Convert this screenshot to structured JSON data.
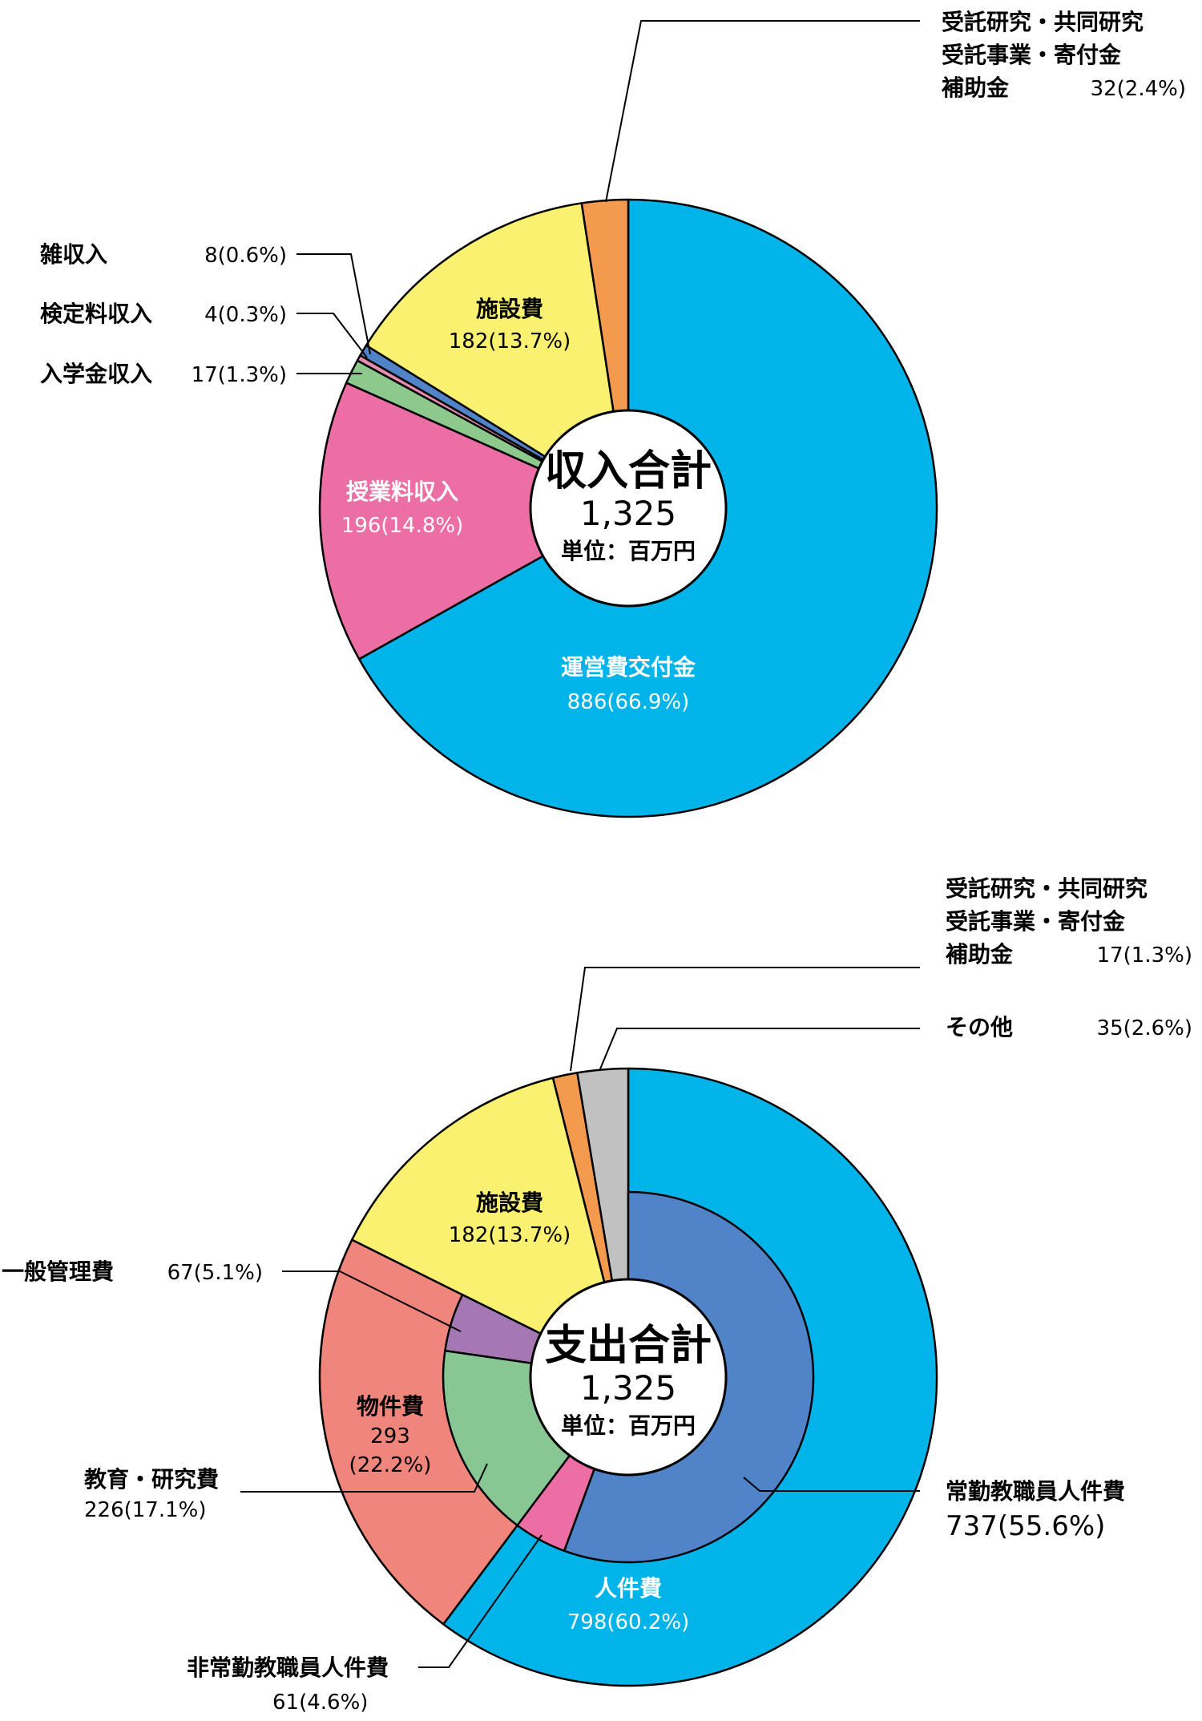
{
  "chart_data": [
    {
      "type": "pie",
      "title": "",
      "center": {
        "title": "収入合計",
        "total": "1,325",
        "unit": "単位：百万円"
      },
      "slices": [
        {
          "name": "運営費交付金",
          "value": 886,
          "label": "886(66.9%)",
          "color": "#00b4ea"
        },
        {
          "name": "授業料収入",
          "value": 196,
          "label": "196(14.8%)",
          "color": "#eb6ea5"
        },
        {
          "name": "入学金収入",
          "value": 17,
          "label": "17(1.3%)",
          "color": "#8dc98d"
        },
        {
          "name": "検定料収入",
          "value": 4,
          "label": "4(0.3%)",
          "color": "#e58cb0"
        },
        {
          "name": "雑収入",
          "value": 8,
          "label": "8(0.6%)",
          "color": "#5083c7"
        },
        {
          "name": "施設費",
          "value": 182,
          "label": "182(13.7%)",
          "color": "#fbf170"
        },
        {
          "name_lines": [
            "受託研究・共同研究",
            "受託事業・寄付金",
            "補助金"
          ],
          "value": 32,
          "label": "32(2.4%)",
          "color": "#f39a4e"
        }
      ]
    },
    {
      "type": "pie",
      "title": "",
      "center": {
        "title": "支出合計",
        "total": "1,325",
        "unit": "単位：百万円"
      },
      "outer_slices": [
        {
          "name": "人件費",
          "value": 798,
          "label": "798(60.2%)",
          "color": "#00b4ea"
        },
        {
          "name": "物件費",
          "value": 293,
          "label_lines": [
            "293",
            "(22.2%)"
          ],
          "color": "#ef857b"
        },
        {
          "name": "施設費",
          "value": 182,
          "label": "182(13.7%)",
          "color": "#fbf170"
        },
        {
          "name_lines": [
            "受託研究・共同研究",
            "受託事業・寄付金",
            "補助金"
          ],
          "value": 17,
          "label": "17(1.3%)",
          "color": "#f39a4e"
        },
        {
          "name": "その他",
          "value": 35,
          "label": "35(2.6%)",
          "color": "#c1c1c1"
        }
      ],
      "inner_slices": [
        {
          "name": "常勤教職員人件費",
          "value": 737,
          "label": "737(55.6%)",
          "color": "#5083c7"
        },
        {
          "name": "非常勤教職員人件費",
          "value": 61,
          "label": "61(4.6%)",
          "color": "#eb6ea5"
        },
        {
          "name": "教育・研究費",
          "value": 226,
          "label": "226(17.1%)",
          "color": "#88c693"
        },
        {
          "name": "一般管理費",
          "value": 67,
          "label": "67(5.1%)",
          "color": "#a578b4"
        }
      ]
    }
  ]
}
